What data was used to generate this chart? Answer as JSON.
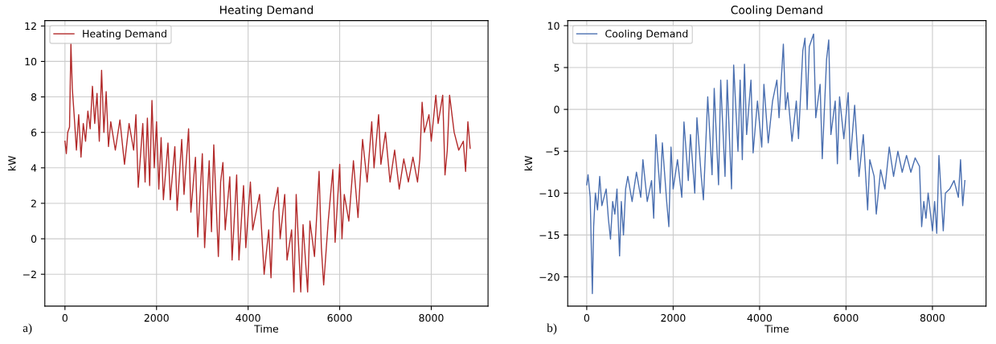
{
  "chart_data": [
    {
      "type": "line",
      "title": "Heating Demand",
      "xlabel": "Time",
      "ylabel": "kW",
      "annotations": [
        "a)"
      ],
      "legend": "top left",
      "grid": true,
      "xlim": [
        -440,
        9240
      ],
      "ylim": [
        -3.8,
        12.3
      ],
      "xticks": [
        0,
        2000,
        4000,
        6000,
        8000
      ],
      "yticks": [
        {
          "value": -2,
          "label": "−2"
        },
        0,
        2,
        4,
        6,
        8,
        10,
        12
      ],
      "series": [
        {
          "name": "Heating Demand",
          "color": "#b22a2a",
          "x": [
            0,
            30,
            60,
            100,
            130,
            160,
            200,
            250,
            300,
            350,
            400,
            450,
            500,
            550,
            600,
            650,
            700,
            750,
            800,
            850,
            900,
            950,
            1000,
            1100,
            1200,
            1300,
            1400,
            1500,
            1550,
            1600,
            1700,
            1750,
            1800,
            1850,
            1900,
            1950,
            2000,
            2050,
            2100,
            2150,
            2250,
            2300,
            2400,
            2450,
            2550,
            2600,
            2700,
            2750,
            2850,
            2900,
            3000,
            3050,
            3150,
            3200,
            3250,
            3350,
            3400,
            3450,
            3500,
            3600,
            3650,
            3750,
            3800,
            3900,
            3950,
            4050,
            4100,
            4250,
            4350,
            4450,
            4500,
            4550,
            4650,
            4700,
            4800,
            4850,
            4950,
            5000,
            5050,
            5150,
            5200,
            5300,
            5350,
            5450,
            5550,
            5600,
            5650,
            5750,
            5850,
            5900,
            6000,
            6050,
            6100,
            6200,
            6300,
            6400,
            6500,
            6600,
            6700,
            6750,
            6850,
            6900,
            7000,
            7100,
            7200,
            7300,
            7400,
            7500,
            7600,
            7700,
            7750,
            7800,
            7850,
            7950,
            8000,
            8100,
            8150,
            8250,
            8300,
            8350,
            8400,
            8500,
            8600,
            8700,
            8750,
            8800,
            8850
          ],
          "values": [
            5.5,
            4.8,
            6,
            6.3,
            11,
            8.5,
            7,
            5,
            7,
            4.6,
            6.5,
            5.5,
            7.2,
            6.2,
            8.6,
            6.5,
            8.2,
            5.5,
            9.5,
            6,
            8.3,
            5.2,
            6.6,
            5,
            6.7,
            4.2,
            6.5,
            5,
            7,
            2.9,
            6.5,
            3.2,
            6.8,
            3,
            7.8,
            4,
            6.6,
            2.8,
            5.7,
            2.2,
            5.4,
            2.2,
            5.2,
            1.6,
            5.6,
            2.5,
            6.2,
            1.5,
            4.6,
            0.1,
            4.8,
            -0.5,
            4.4,
            0.4,
            5.3,
            -1,
            3.2,
            4.3,
            0.5,
            3.5,
            -1.2,
            3.6,
            -1.2,
            3,
            -0.5,
            3.2,
            0.5,
            2.5,
            -2,
            0.5,
            -2.2,
            1.5,
            2.9,
            0,
            2.5,
            -1.2,
            0.5,
            -3,
            2.5,
            -3,
            0.8,
            -3,
            1,
            -1,
            3.8,
            -0.5,
            -2.6,
            1,
            3.9,
            -0.2,
            4.2,
            0,
            2.5,
            1,
            4.4,
            1.2,
            5.6,
            3.2,
            6.6,
            4,
            7,
            4.2,
            6,
            3.2,
            5,
            2.8,
            4.5,
            3.2,
            4.6,
            3.2,
            4.5,
            7.7,
            6,
            7,
            5.5,
            8.1,
            6.5,
            8.1,
            3.6,
            5,
            8.1,
            6,
            5,
            5.5,
            3.8,
            6.6,
            5.1
          ]
        }
      ]
    },
    {
      "type": "line",
      "title": "Cooling Demand",
      "xlabel": "Time",
      "ylabel": "kW",
      "annotations": [
        "b)"
      ],
      "legend": "top left",
      "grid": true,
      "xlim": [
        -440,
        9240
      ],
      "ylim": [
        -23.5,
        10.6
      ],
      "xticks": [
        0,
        2000,
        4000,
        6000,
        8000
      ],
      "yticks": [
        {
          "value": -20,
          "label": "−20"
        },
        {
          "value": -15,
          "label": "−15"
        },
        {
          "value": -10,
          "label": "−10"
        },
        {
          "value": -5,
          "label": "−5"
        },
        0,
        5,
        10
      ],
      "series": [
        {
          "name": "Cooling Demand",
          "color": "#4a6fb0",
          "x": [
            0,
            30,
            80,
            130,
            160,
            200,
            250,
            300,
            350,
            450,
            500,
            550,
            600,
            650,
            700,
            760,
            800,
            850,
            900,
            950,
            1050,
            1150,
            1250,
            1300,
            1400,
            1500,
            1550,
            1600,
            1700,
            1750,
            1850,
            1900,
            1950,
            2000,
            2100,
            2200,
            2250,
            2350,
            2400,
            2500,
            2550,
            2650,
            2700,
            2800,
            2900,
            2950,
            3050,
            3100,
            3200,
            3250,
            3350,
            3400,
            3500,
            3550,
            3600,
            3650,
            3700,
            3800,
            3850,
            3950,
            4050,
            4100,
            4200,
            4300,
            4400,
            4450,
            4550,
            4600,
            4650,
            4750,
            4850,
            4900,
            5000,
            5050,
            5100,
            5150,
            5250,
            5300,
            5400,
            5450,
            5550,
            5600,
            5650,
            5750,
            5800,
            5850,
            5950,
            6050,
            6100,
            6200,
            6300,
            6400,
            6500,
            6550,
            6650,
            6700,
            6800,
            6900,
            7000,
            7100,
            7200,
            7300,
            7400,
            7500,
            7600,
            7700,
            7750,
            7800,
            7850,
            7900,
            8000,
            8050,
            8100,
            8150,
            8250,
            8300,
            8400,
            8500,
            8600,
            8650,
            8700,
            8750
          ],
          "values": [
            -9,
            -7.8,
            -10.5,
            -22,
            -14,
            -10,
            -12,
            -8,
            -11.5,
            -9.5,
            -13,
            -15.5,
            -11,
            -12.5,
            -9.5,
            -17.5,
            -11,
            -15,
            -9.5,
            -8,
            -11,
            -7.5,
            -10.5,
            -6,
            -11,
            -8.5,
            -13,
            -3,
            -10,
            -4,
            -11,
            -14,
            -4.5,
            -9.5,
            -6,
            -10.5,
            -1.5,
            -8.5,
            -3,
            -10,
            -1,
            -8,
            -10.8,
            1.5,
            -7.8,
            2.5,
            -9,
            3.5,
            -8,
            3.5,
            -9.5,
            5.3,
            -5,
            3.5,
            -6,
            5.4,
            -3,
            3.5,
            -5.2,
            1,
            -4.5,
            3,
            -4,
            1,
            3.5,
            -1,
            7.8,
            0,
            2,
            -3.8,
            1,
            -3.5,
            7,
            8.5,
            0,
            7.5,
            9,
            -1,
            3,
            -5.9,
            6,
            8.3,
            -3,
            1,
            -6.5,
            1.5,
            -3.5,
            2,
            -6,
            0.5,
            -8,
            -3,
            -12,
            -6,
            -8,
            -12.5,
            -7.2,
            -9.5,
            -4.5,
            -8,
            -5,
            -7.5,
            -5.5,
            -7.5,
            -5.8,
            -6.8,
            -14,
            -11,
            -13,
            -10,
            -14.5,
            -11,
            -14.8,
            -5.5,
            -14.5,
            -10,
            -9.5,
            -8.5,
            -10.5,
            -6,
            -11.5,
            -8.5
          ]
        }
      ]
    }
  ]
}
